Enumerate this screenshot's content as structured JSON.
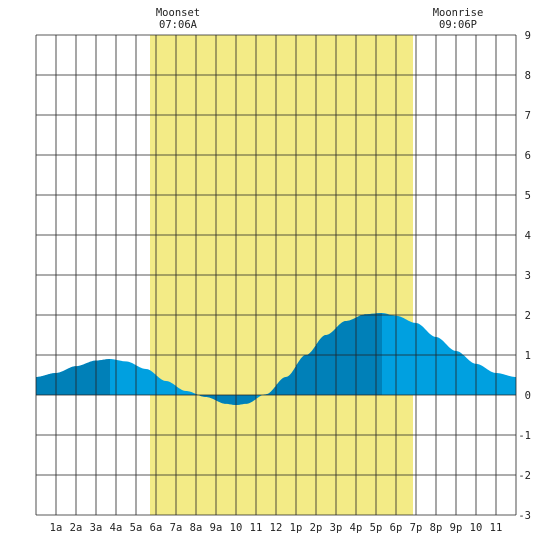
{
  "chart_data": {
    "type": "area",
    "title": "",
    "xlabel": "",
    "ylabel": "",
    "xlim": [
      0,
      24
    ],
    "ylim": [
      -3,
      9
    ],
    "grid": true,
    "y_ticks": [
      "-3",
      "-2",
      "-1",
      "0",
      "1",
      "2",
      "3",
      "4",
      "5",
      "6",
      "7",
      "8",
      "9"
    ],
    "x_tick_labels": [
      "1a",
      "2a",
      "3a",
      "4a",
      "5a",
      "6a",
      "7a",
      "8a",
      "9a",
      "10",
      "11",
      "12",
      "1p",
      "2p",
      "3p",
      "4p",
      "5p",
      "6p",
      "7p",
      "8p",
      "9p",
      "10",
      "11"
    ],
    "annotations": [
      {
        "label": "Moonset",
        "time": "07:06A",
        "hour": 7.1
      },
      {
        "label": "Moonrise",
        "time": "09:06P",
        "hour": 21.1
      }
    ],
    "highlight_band": {
      "start_hour": 5.7,
      "end_hour": 18.85,
      "color": "#f3eb86"
    },
    "series": [
      {
        "x": [
          0,
          1,
          2,
          3,
          3.7,
          4.5,
          5.5,
          6.5,
          7.5,
          8.5,
          9.5,
          10,
          10.5,
          11.5,
          12.5,
          13.5,
          14.5,
          15.5,
          16.5,
          17.3,
          18,
          19,
          20,
          21,
          22,
          23,
          24
        ],
        "values": [
          0.45,
          0.55,
          0.72,
          0.86,
          0.9,
          0.84,
          0.65,
          0.35,
          0.1,
          -0.05,
          -0.22,
          -0.25,
          -0.22,
          0.02,
          0.45,
          1.0,
          1.5,
          1.85,
          2.02,
          2.05,
          1.98,
          1.8,
          1.45,
          1.1,
          0.78,
          0.55,
          0.45
        ]
      }
    ],
    "shading": [
      {
        "from_hour": 0,
        "to_hour": 3.7,
        "color": "#0080b8"
      },
      {
        "from_hour": 8.0,
        "to_hour": 11.0,
        "color": "#0080b8"
      },
      {
        "from_hour": 11.5,
        "to_hour": 17.3,
        "color": "#0080b8"
      }
    ],
    "colors": {
      "water": "#00a0e0",
      "water_dark": "#0080b8",
      "grid": "#222222",
      "background": "#ffffff"
    }
  }
}
